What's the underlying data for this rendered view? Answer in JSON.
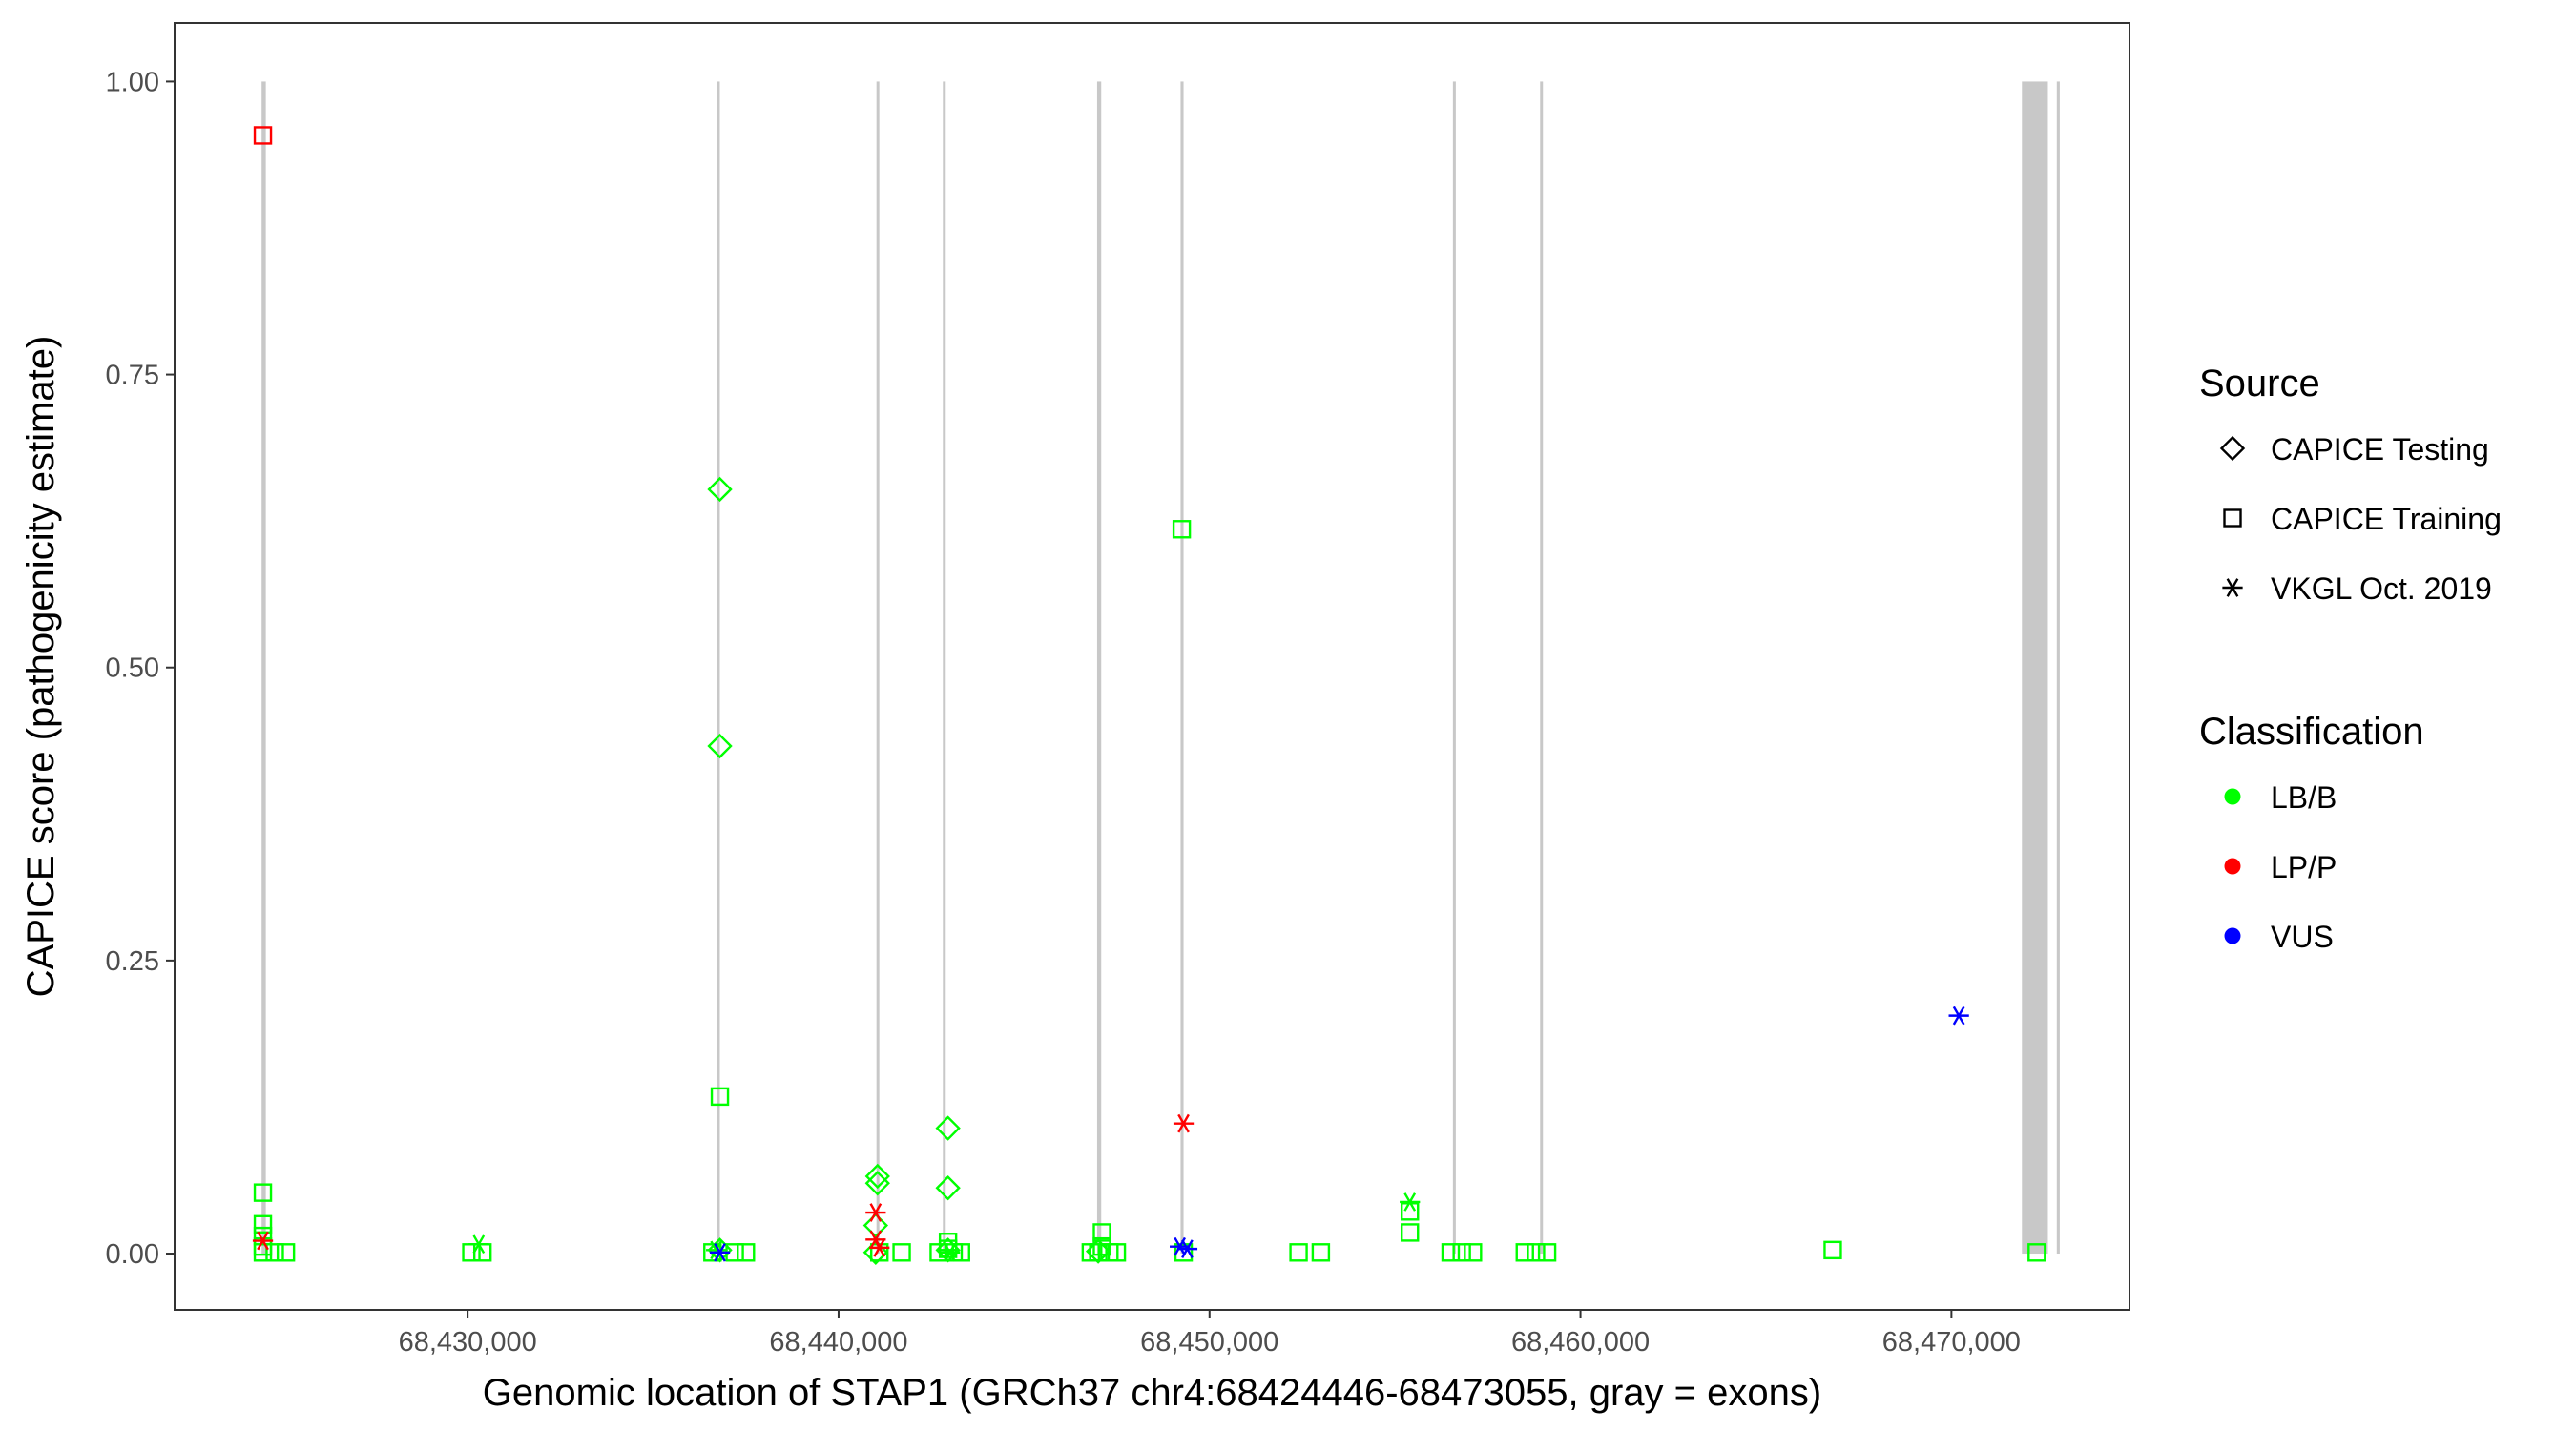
{
  "chart_data": {
    "type": "scatter",
    "title": "",
    "xlabel": "Genomic location of STAP1 (GRCh37 chr4:68424446-68473055, gray = exons)",
    "ylabel": "CAPICE score (pathogenicity estimate)",
    "xlim": [
      68422100,
      68474800
    ],
    "ylim": [
      -0.048,
      1.05
    ],
    "x_ticks": [
      68430000,
      68440000,
      68450000,
      68460000,
      68470000
    ],
    "x_tick_labels": [
      "68,430,000",
      "68,440,000",
      "68,450,000",
      "68,460,000",
      "68,470,000"
    ],
    "y_ticks": [
      0,
      0.25,
      0.5,
      0.75,
      1.0
    ],
    "y_tick_labels": [
      "0.00",
      "0.25",
      "0.50",
      "0.75",
      "1.00"
    ],
    "grid": false,
    "exons": [
      {
        "start": 68424446,
        "end": 68424560
      },
      {
        "start": 68436760,
        "end": 68436820
      },
      {
        "start": 68441060,
        "end": 68441120
      },
      {
        "start": 68442850,
        "end": 68442900
      },
      {
        "start": 68446970,
        "end": 68447080
      },
      {
        "start": 68449220,
        "end": 68449300
      },
      {
        "start": 68456600,
        "end": 68456660
      },
      {
        "start": 68458950,
        "end": 68459010
      },
      {
        "start": 68471900,
        "end": 68472600
      },
      {
        "start": 68472840,
        "end": 68472920
      }
    ],
    "exon_color": "#c8c8c8",
    "legend": {
      "placement": "right",
      "source_title": "Source",
      "source_entries": [
        {
          "label": "CAPICE Testing",
          "shape": "diamond"
        },
        {
          "label": "CAPICE Training",
          "shape": "square"
        },
        {
          "label": "VKGL Oct. 2019",
          "shape": "asterisk"
        }
      ],
      "classification_title": "Classification",
      "classification_entries": [
        {
          "label": "LB/B",
          "color": "#00ff00"
        },
        {
          "label": "LP/P",
          "color": "#ff0000"
        },
        {
          "label": "VUS",
          "color": "#0000ff"
        }
      ]
    },
    "series": [
      {
        "source": "CAPICE Training",
        "classification": "LB/B",
        "shape": "square",
        "color": "#00ff00",
        "points": [
          [
            68424480,
            0.052
          ],
          [
            68424480,
            0.025
          ],
          [
            68424480,
            0.015
          ],
          [
            68424480,
            0.006
          ],
          [
            68424480,
            0.001
          ],
          [
            68424800,
            0.001
          ],
          [
            68425100,
            0.001
          ],
          [
            68430100,
            0.001
          ],
          [
            68430400,
            0.001
          ],
          [
            68436600,
            0.001
          ],
          [
            68436800,
            0.134
          ],
          [
            68437200,
            0.001
          ],
          [
            68437500,
            0.001
          ],
          [
            68441100,
            0.001
          ],
          [
            68441700,
            0.001
          ],
          [
            68442700,
            0.001
          ],
          [
            68442950,
            0.01
          ],
          [
            68442950,
            0.004
          ],
          [
            68443100,
            0.001
          ],
          [
            68443300,
            0.001
          ],
          [
            68446800,
            0.001
          ],
          [
            68447000,
            0.001
          ],
          [
            68447100,
            0.018
          ],
          [
            68447100,
            0.006
          ],
          [
            68447300,
            0.001
          ],
          [
            68447500,
            0.001
          ],
          [
            68449250,
            0.618
          ],
          [
            68449300,
            0.001
          ],
          [
            68452400,
            0.001
          ],
          [
            68453000,
            0.001
          ],
          [
            68455400,
            0.018
          ],
          [
            68455400,
            0.036
          ],
          [
            68456500,
            0.001
          ],
          [
            68456800,
            0.001
          ],
          [
            68457100,
            0.001
          ],
          [
            68458500,
            0.001
          ],
          [
            68458800,
            0.001
          ],
          [
            68459100,
            0.001
          ],
          [
            68466800,
            0.003
          ],
          [
            68472300,
            0.001
          ]
        ]
      },
      {
        "source": "CAPICE Training",
        "classification": "LP/P",
        "shape": "square",
        "color": "#ff0000",
        "points": [
          [
            68424480,
            0.954
          ]
        ]
      },
      {
        "source": "CAPICE Testing",
        "classification": "LB/B",
        "shape": "diamond",
        "color": "#00ff00",
        "points": [
          [
            68436800,
            0.652
          ],
          [
            68436800,
            0.433
          ],
          [
            68436800,
            0.003
          ],
          [
            68441050,
            0.066
          ],
          [
            68441050,
            0.06
          ],
          [
            68441000,
            0.024
          ],
          [
            68441000,
            0.001
          ],
          [
            68442950,
            0.107
          ],
          [
            68442950,
            0.056
          ],
          [
            68442950,
            0.003
          ],
          [
            68447000,
            0.002
          ]
        ]
      },
      {
        "source": "VKGL Oct. 2019",
        "classification": "LB/B",
        "shape": "asterisk",
        "color": "#00ff00",
        "points": [
          [
            68430300,
            0.008
          ],
          [
            68436700,
            0.003
          ],
          [
            68443000,
            0.001
          ],
          [
            68455400,
            0.044
          ]
        ]
      },
      {
        "source": "VKGL Oct. 2019",
        "classification": "LP/P",
        "shape": "asterisk",
        "color": "#ff0000",
        "points": [
          [
            68424480,
            0.011
          ],
          [
            68441000,
            0.035
          ],
          [
            68441000,
            0.012
          ],
          [
            68441100,
            0.005
          ],
          [
            68449300,
            0.111
          ]
        ]
      },
      {
        "source": "VKGL Oct. 2019",
        "classification": "VUS",
        "shape": "asterisk",
        "color": "#0000ff",
        "points": [
          [
            68436800,
            0.001
          ],
          [
            68449200,
            0.006
          ],
          [
            68449400,
            0.004
          ],
          [
            68470200,
            0.203
          ]
        ]
      }
    ]
  }
}
